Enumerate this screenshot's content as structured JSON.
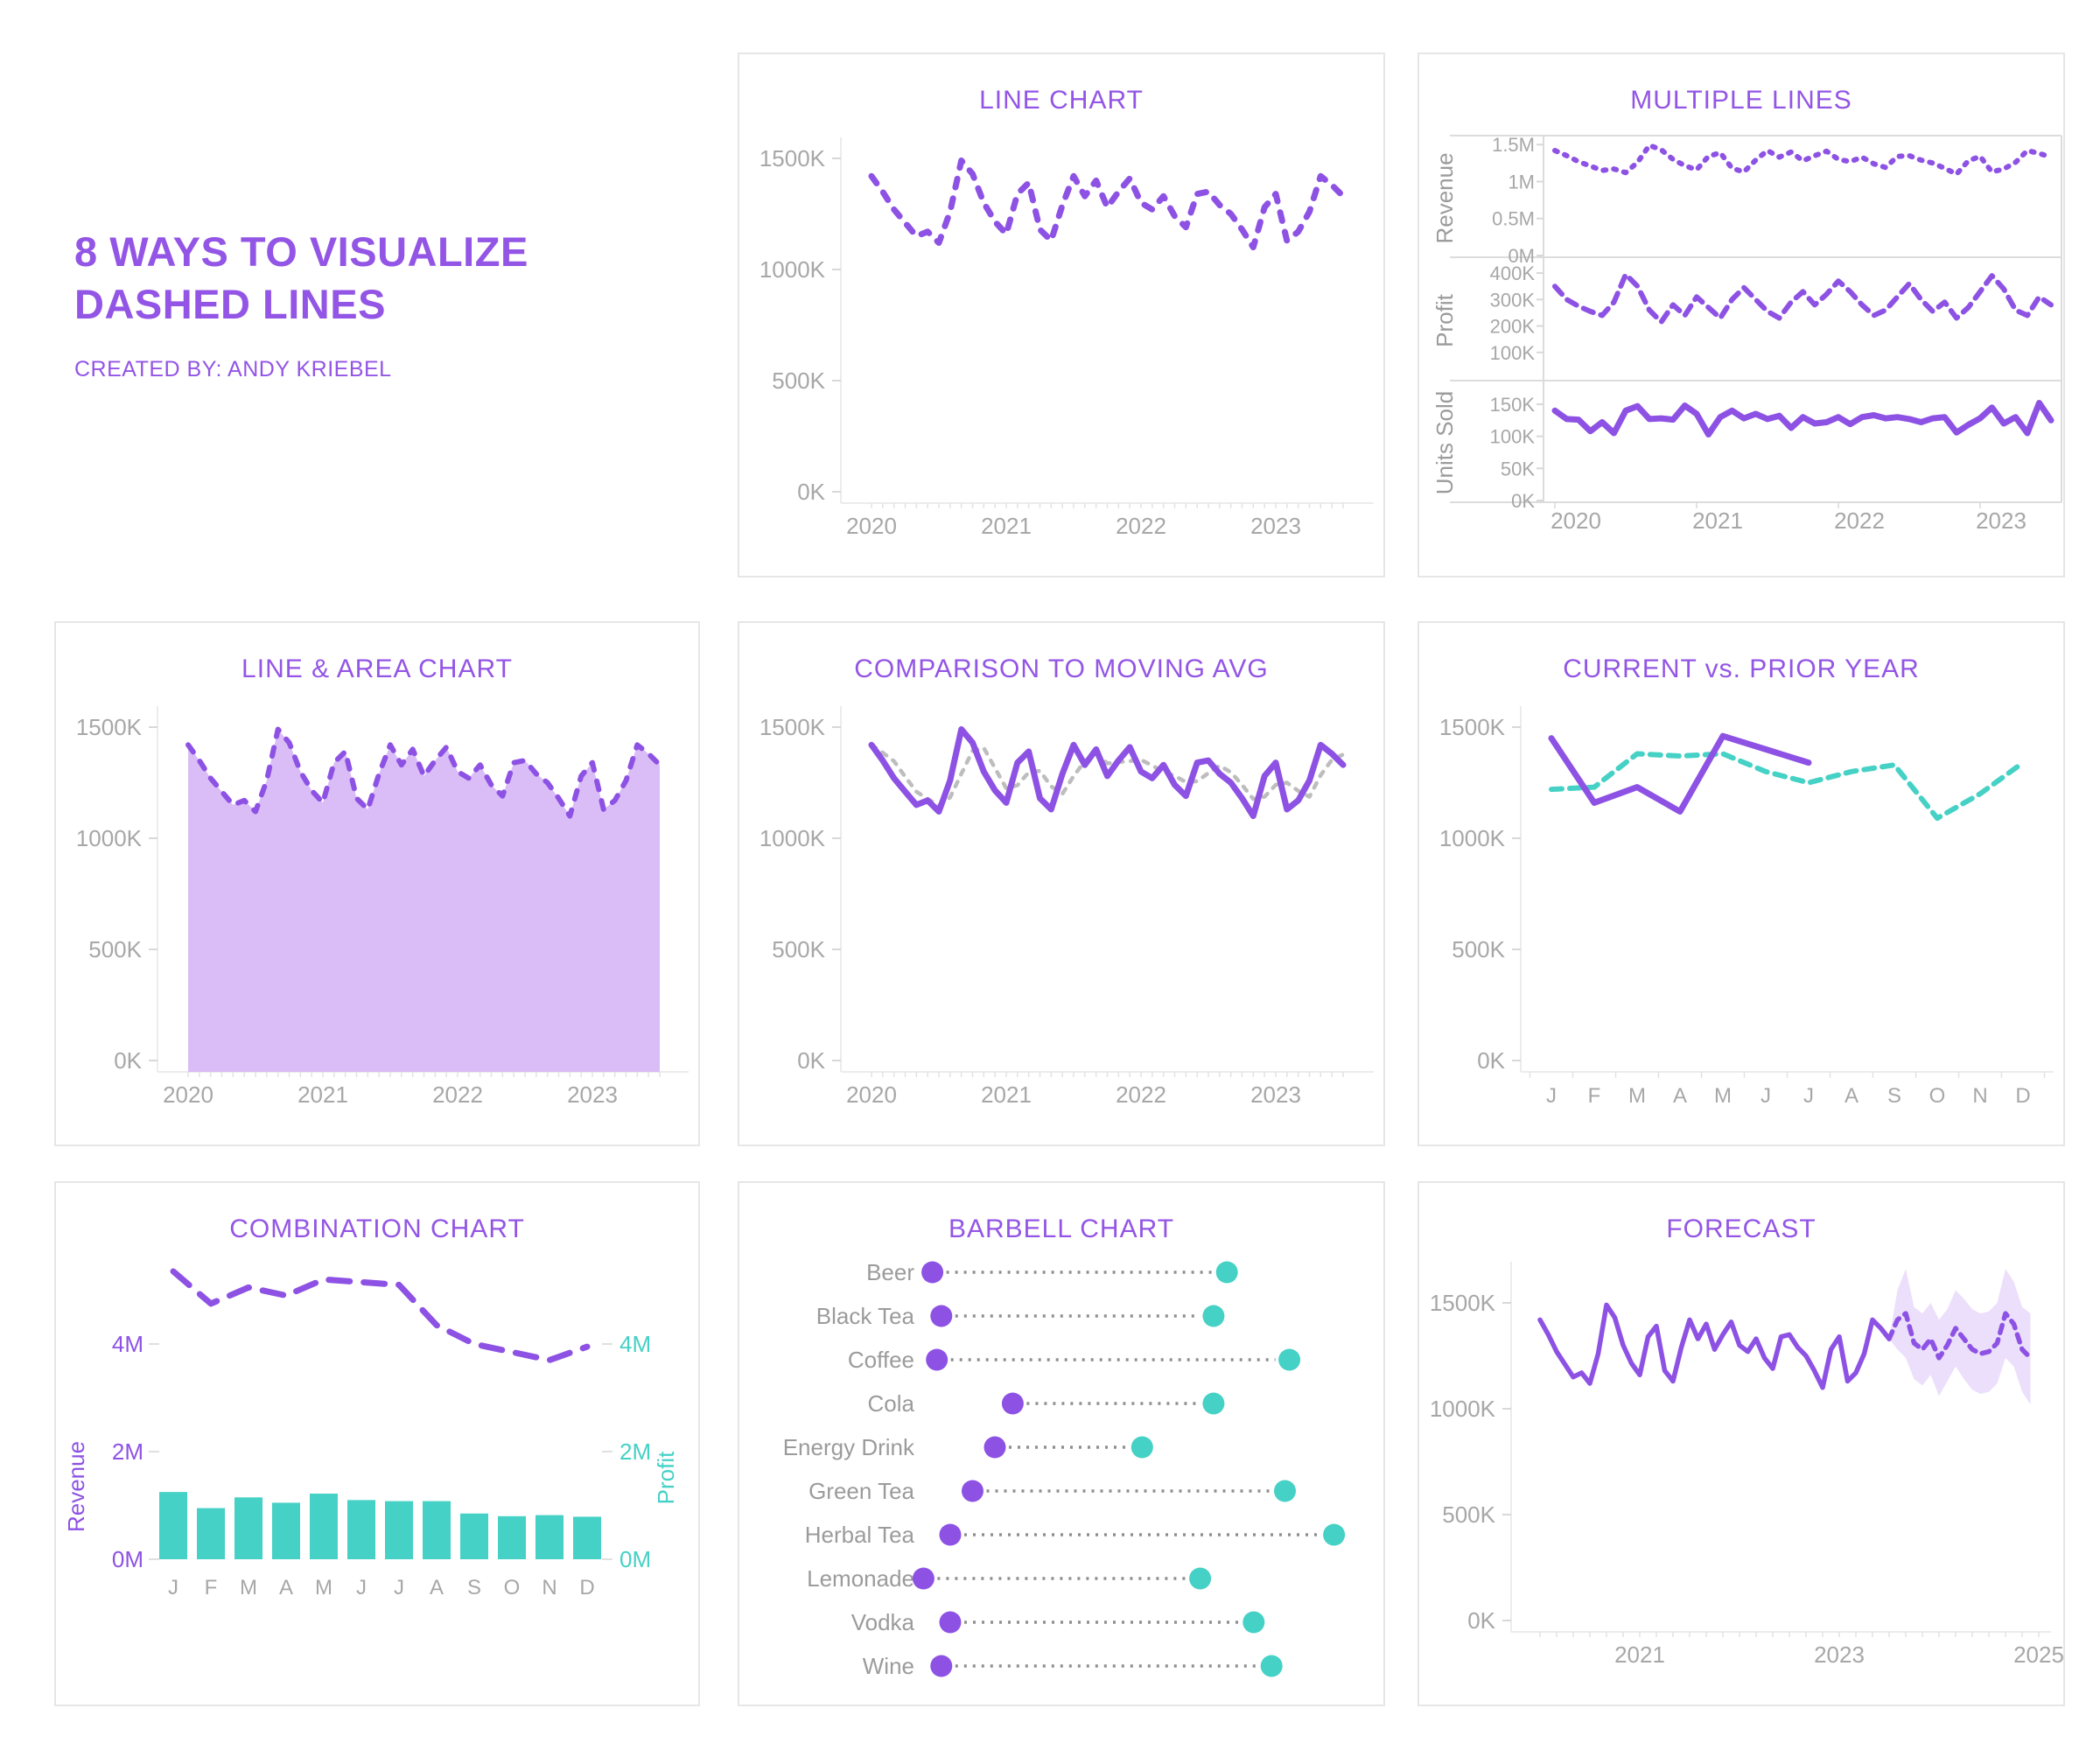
{
  "page": {
    "title": "8 WAYS TO VISUALIZE DASHED LINES",
    "subtitle": "CREATED BY: ANDY KRIEBEL"
  },
  "palette": {
    "purple": "#8d52e4",
    "accent_title": "#9355e5",
    "teal": "#45d1c5",
    "gray_line": "#bdbdbd",
    "connector_gray": "#8f8f8f",
    "axis_text": "#a7a7a7",
    "label_gray": "#9b9b9b",
    "area_fill": "#d6b6f6",
    "band_fill": "#d9c0f7",
    "card_border": "#e6e6e6"
  },
  "chart_data": {
    "shared_series": {
      "revenue_monthly_k": [
        1420,
        1350,
        1270,
        1210,
        1150,
        1170,
        1120,
        1260,
        1490,
        1430,
        1300,
        1215,
        1160,
        1340,
        1390,
        1180,
        1130,
        1290,
        1420,
        1330,
        1400,
        1280,
        1350,
        1410,
        1300,
        1270,
        1330,
        1240,
        1190,
        1340,
        1350,
        1290,
        1250,
        1180,
        1100,
        1280,
        1340,
        1130,
        1170,
        1260,
        1420,
        1380,
        1330
      ],
      "profit_monthly_k": [
        350,
        300,
        275,
        255,
        240,
        290,
        395,
        350,
        260,
        215,
        280,
        240,
        310,
        270,
        230,
        300,
        345,
        300,
        255,
        230,
        290,
        330,
        280,
        320,
        370,
        330,
        280,
        240,
        260,
        310,
        360,
        300,
        255,
        290,
        230,
        270,
        330,
        390,
        340,
        260,
        240,
        310,
        280
      ],
      "units_monthly_k": [
        140,
        127,
        126,
        108,
        122,
        105,
        140,
        147,
        127,
        128,
        126,
        148,
        135,
        103,
        130,
        140,
        128,
        135,
        127,
        132,
        113,
        130,
        120,
        122,
        130,
        119,
        130,
        133,
        128,
        130,
        127,
        122,
        128,
        130,
        106,
        118,
        128,
        145,
        120,
        130,
        105,
        152,
        125
      ],
      "current_year_k": [
        1450,
        1160,
        1230,
        1120,
        1460,
        1400,
        1340
      ],
      "prior_year_k": [
        1220,
        1230,
        1380,
        1370,
        1380,
        1300,
        1250,
        1300,
        1330,
        1090,
        1200,
        1340
      ],
      "combo_revenue_m": [
        5.35,
        4.75,
        5.05,
        4.9,
        5.2,
        5.15,
        5.1,
        4.35,
        4.0,
        3.85,
        3.7,
        3.95
      ],
      "combo_profit_m": [
        1.25,
        0.95,
        1.15,
        1.05,
        1.22,
        1.1,
        1.08,
        1.08,
        0.85,
        0.8,
        0.82,
        0.79
      ],
      "forecast_k": [
        1330,
        1420,
        1450,
        1310,
        1280,
        1330,
        1240,
        1300,
        1380,
        1330,
        1280,
        1260,
        1270,
        1310,
        1450,
        1400,
        1280,
        1240
      ],
      "forecast_upper_k": [
        1330,
        1560,
        1660,
        1480,
        1450,
        1500,
        1420,
        1470,
        1560,
        1520,
        1470,
        1450,
        1460,
        1500,
        1660,
        1600,
        1480,
        1450
      ],
      "forecast_lower_k": [
        1330,
        1280,
        1240,
        1140,
        1110,
        1160,
        1060,
        1130,
        1200,
        1140,
        1090,
        1070,
        1080,
        1120,
        1240,
        1200,
        1080,
        1020
      ]
    },
    "charts": [
      {
        "id": "line_chart",
        "type": "line",
        "title": "LINE CHART",
        "x_start": "2020-01",
        "x_unit": "month",
        "x_ticks": [
          {
            "i": 0,
            "label": "2020"
          },
          {
            "i": 12,
            "label": "2021"
          },
          {
            "i": 24,
            "label": "2022"
          },
          {
            "i": 36,
            "label": "2023"
          }
        ],
        "y_ticks": [
          {
            "v": 1500,
            "label": "1500K"
          },
          {
            "v": 1000,
            "label": "1000K"
          },
          {
            "v": 500,
            "label": "500K"
          },
          {
            "v": 0,
            "label": "0K"
          }
        ],
        "ylim": [
          0,
          1590
        ],
        "series": [
          {
            "name": "sales",
            "style": "dashed",
            "color": "purple",
            "values_ref": "revenue_monthly_k"
          }
        ]
      },
      {
        "id": "multiple_lines",
        "type": "line",
        "title": "MULTIPLE LINES",
        "x_start": "2020-01",
        "x_unit": "month",
        "x_ticks": [
          {
            "i": 0,
            "label": "2020"
          },
          {
            "i": 12,
            "label": "2021"
          },
          {
            "i": 24,
            "label": "2022"
          },
          {
            "i": 36,
            "label": "2023"
          }
        ],
        "panels": [
          {
            "label": "Revenue",
            "v_top": 1550,
            "ticks": [
              {
                "v": 1500,
                "label": "1.5M"
              },
              {
                "v": 1000,
                "label": "1M"
              },
              {
                "v": 500,
                "label": "0.5M"
              },
              {
                "v": 0,
                "label": "0M"
              }
            ],
            "series": {
              "name": "revenue",
              "style": "dotted-dash",
              "color": "purple",
              "values_ref": "revenue_monthly_k"
            }
          },
          {
            "label": "Profit",
            "v_top": 440,
            "ticks": [
              {
                "v": 400,
                "label": "400K"
              },
              {
                "v": 300,
                "label": "300K"
              },
              {
                "v": 200,
                "label": "200K"
              },
              {
                "v": 100,
                "label": "100K"
              }
            ],
            "series": {
              "name": "profit",
              "style": "dashed-med",
              "color": "purple",
              "values_ref": "profit_monthly_k"
            }
          },
          {
            "label": "Units Sold",
            "v_top": 180,
            "ticks": [
              {
                "v": 150,
                "label": "150K"
              },
              {
                "v": 100,
                "label": "100K"
              },
              {
                "v": 50,
                "label": "50K"
              },
              {
                "v": 0,
                "label": "0K"
              }
            ],
            "series": {
              "name": "units",
              "style": "solid",
              "color": "purple",
              "values_ref": "units_monthly_k"
            }
          }
        ]
      },
      {
        "id": "area_chart",
        "type": "area",
        "title": "LINE & AREA CHART",
        "x_start": "2020-01",
        "x_unit": "month",
        "x_ticks": [
          {
            "i": 0,
            "label": "2020"
          },
          {
            "i": 12,
            "label": "2021"
          },
          {
            "i": 24,
            "label": "2022"
          },
          {
            "i": 36,
            "label": "2023"
          }
        ],
        "y_ticks": [
          {
            "v": 1500,
            "label": "1500K"
          },
          {
            "v": 1000,
            "label": "1000K"
          },
          {
            "v": 500,
            "label": "500K"
          },
          {
            "v": 0,
            "label": "0K"
          }
        ],
        "ylim": [
          0,
          1590
        ],
        "series": [
          {
            "name": "sales",
            "style": "dashed",
            "color": "purple",
            "area": true,
            "values_ref": "revenue_monthly_k"
          }
        ]
      },
      {
        "id": "comparison",
        "type": "line",
        "title": "COMPARISON TO MOVING AVG",
        "x_start": "2020-01",
        "x_unit": "month",
        "x_ticks": [
          {
            "i": 0,
            "label": "2020"
          },
          {
            "i": 12,
            "label": "2021"
          },
          {
            "i": 24,
            "label": "2022"
          },
          {
            "i": 36,
            "label": "2023"
          }
        ],
        "y_ticks": [
          {
            "v": 1500,
            "label": "1500K"
          },
          {
            "v": 1000,
            "label": "1000K"
          },
          {
            "v": 500,
            "label": "500K"
          },
          {
            "v": 0,
            "label": "0K"
          }
        ],
        "ylim": [
          0,
          1590
        ],
        "series": [
          {
            "name": "moving-avg",
            "style": "dashed-short",
            "color": "gray_line",
            "derive": "movavg3",
            "of": "revenue_monthly_k"
          },
          {
            "name": "sales",
            "style": "solid",
            "color": "purple",
            "values_ref": "revenue_monthly_k"
          }
        ]
      },
      {
        "id": "prior_year",
        "type": "line",
        "title": "CURRENT vs. PRIOR YEAR",
        "categories": [
          "J",
          "F",
          "M",
          "A",
          "M",
          "J",
          "J",
          "A",
          "S",
          "O",
          "N",
          "D"
        ],
        "y_ticks": [
          {
            "v": 1500,
            "label": "1500K"
          },
          {
            "v": 1000,
            "label": "1000K"
          },
          {
            "v": 500,
            "label": "500K"
          },
          {
            "v": 0,
            "label": "0K"
          }
        ],
        "ylim": [
          0,
          1590
        ],
        "series": [
          {
            "name": "prior-year",
            "style": "dashed-med",
            "color": "teal",
            "values_ref": "prior_year_k"
          },
          {
            "name": "current-year",
            "style": "solid",
            "color": "purple",
            "values_ref": "current_year_k"
          }
        ]
      },
      {
        "id": "combination",
        "type": "bar+line",
        "title": "COMBINATION CHART",
        "categories": [
          "J",
          "F",
          "M",
          "A",
          "M",
          "J",
          "J",
          "A",
          "S",
          "O",
          "N",
          "D"
        ],
        "left_axis": {
          "label": "Revenue",
          "ticks": [
            {
              "v": 4,
              "label": "4M"
            },
            {
              "v": 2,
              "label": "2M"
            },
            {
              "v": 0,
              "label": "0M"
            }
          ]
        },
        "right_axis": {
          "label": "Profit",
          "ticks": [
            {
              "v": 4,
              "label": "4M"
            },
            {
              "v": 2,
              "label": "2M"
            },
            {
              "v": 0,
              "label": "0M"
            }
          ]
        },
        "ylim": [
          0,
          5.6
        ],
        "series": [
          {
            "name": "revenue",
            "kind": "line",
            "style": "dashed-long",
            "color": "purple",
            "values_ref": "combo_revenue_m"
          },
          {
            "name": "profit",
            "kind": "bar",
            "color": "teal",
            "values_ref": "combo_profit_m"
          }
        ]
      },
      {
        "id": "barbell",
        "type": "barbell",
        "title": "BARBELL CHART",
        "value_scale": [
          0,
          100
        ],
        "rows": [
          {
            "label": "Beer",
            "start": 6,
            "end": 72
          },
          {
            "label": "Black Tea",
            "start": 8,
            "end": 69
          },
          {
            "label": "Coffee",
            "start": 7,
            "end": 86
          },
          {
            "label": "Cola",
            "start": 24,
            "end": 69
          },
          {
            "label": "Energy Drink",
            "start": 20,
            "end": 53
          },
          {
            "label": "Green Tea",
            "start": 15,
            "end": 85
          },
          {
            "label": "Herbal Tea",
            "start": 10,
            "end": 96
          },
          {
            "label": "Lemonade",
            "start": 4,
            "end": 66
          },
          {
            "label": "Vodka",
            "start": 10,
            "end": 78
          },
          {
            "label": "Wine",
            "start": 8,
            "end": 82
          }
        ]
      },
      {
        "id": "forecast",
        "type": "line",
        "title": "FORECAST",
        "x_start": "2020-01",
        "x_unit": "month",
        "x_ticks": [
          {
            "i": 12,
            "label": "2021"
          },
          {
            "i": 36,
            "label": "2023"
          },
          {
            "i": 60,
            "label": "2025"
          }
        ],
        "y_ticks": [
          {
            "v": 1500,
            "label": "1500K"
          },
          {
            "v": 1000,
            "label": "1000K"
          },
          {
            "v": 500,
            "label": "500K"
          },
          {
            "v": 0,
            "label": "0K"
          }
        ],
        "ylim": [
          0,
          1700
        ],
        "band": {
          "upper_ref": "forecast_upper_k",
          "lower_ref": "forecast_lower_k",
          "start": 42
        },
        "series": [
          {
            "name": "actual",
            "style": "solid",
            "color": "purple",
            "values_ref": "revenue_monthly_k"
          },
          {
            "name": "forecast",
            "style": "dashed-fc",
            "color": "purple",
            "values_ref": "forecast_k",
            "start": 42
          }
        ]
      }
    ]
  }
}
